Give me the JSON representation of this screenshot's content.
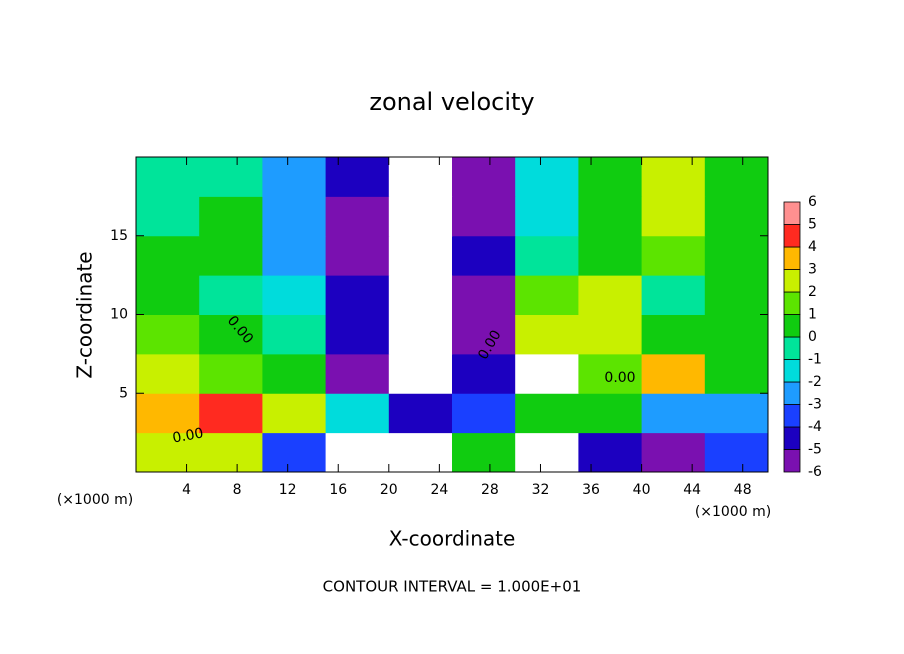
{
  "chart_data": {
    "type": "contour",
    "title": "zonal velocity",
    "x_label": "X-coordinate",
    "y_label": "Z-coordinate",
    "x_unit": "(×1000 m)",
    "y_unit": "(×1000 m)",
    "footnote": "CONTOUR INTERVAL = 1.000E+01",
    "contour_labels": [
      "0.00",
      "0.00",
      "0.00",
      "0.00"
    ],
    "xlim": [
      0,
      50
    ],
    "ylim": [
      0,
      20
    ],
    "xticks": [
      4,
      8,
      12,
      16,
      20,
      24,
      28,
      32,
      36,
      40,
      44,
      48
    ],
    "yticks": [
      5,
      10,
      15
    ],
    "x_edges": [
      0,
      5,
      10,
      15,
      20,
      25,
      30,
      35,
      40,
      45,
      50
    ],
    "z_edges": [
      0,
      2.5,
      5,
      7.5,
      10,
      12.5,
      15,
      17.5,
      20
    ],
    "z": [
      [
        3,
        3,
        -3,
        8,
        8,
        1,
        -8,
        -4,
        -5,
        -3
      ],
      [
        4,
        5,
        3,
        -1,
        -4,
        -3,
        1,
        1,
        -2,
        -2
      ],
      [
        3,
        2,
        1,
        -5,
        -8,
        -4,
        8,
        2,
        4,
        1
      ],
      [
        2,
        1,
        0,
        -4,
        -8,
        -5,
        3,
        3,
        1,
        1
      ],
      [
        1,
        0,
        -1,
        -4,
        -8,
        -5,
        2,
        3,
        0,
        1
      ],
      [
        1,
        1,
        -2,
        -5,
        -8,
        -4,
        0,
        1,
        2,
        1
      ],
      [
        0,
        1,
        -2,
        -5,
        -8,
        -5,
        -1,
        1,
        3,
        1
      ],
      [
        0,
        0,
        -2,
        -4,
        -8,
        -5,
        -1,
        1,
        3,
        1
      ]
    ],
    "colorbar_levels": [
      -6,
      -5,
      -4,
      -3,
      -2,
      -1,
      0,
      1,
      2,
      3,
      4,
      5,
      6
    ],
    "colors": [
      "#7a10b0",
      "#1c00c0",
      "#1a40ff",
      "#1e9cff",
      "#00dcdc",
      "#00e49a",
      "#10cc10",
      "#5ce400",
      "#c8f000",
      "#ffb800",
      "#ff2a20",
      "#ff9090"
    ],
    "out_of_range_color": "#ffffff"
  }
}
